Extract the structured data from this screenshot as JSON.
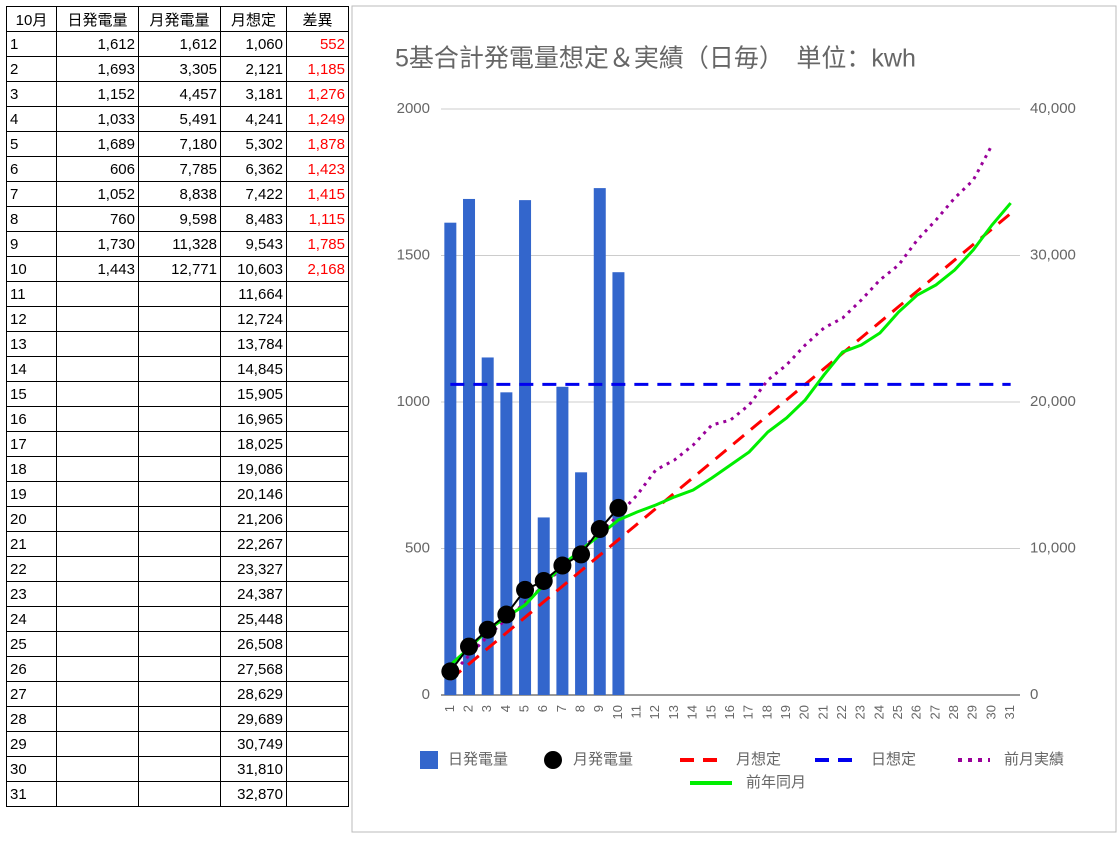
{
  "table": {
    "header": [
      "10月",
      "日発電量",
      "月発電量",
      "月想定",
      "差異"
    ],
    "rows": [
      [
        "1",
        "1,612",
        "1,612",
        "1,060",
        "552"
      ],
      [
        "2",
        "1,693",
        "3,305",
        "2,121",
        "1,185"
      ],
      [
        "3",
        "1,152",
        "4,457",
        "3,181",
        "1,276"
      ],
      [
        "4",
        "1,033",
        "5,491",
        "4,241",
        "1,249"
      ],
      [
        "5",
        "1,689",
        "7,180",
        "5,302",
        "1,878"
      ],
      [
        "6",
        "606",
        "7,785",
        "6,362",
        "1,423"
      ],
      [
        "7",
        "1,052",
        "8,838",
        "7,422",
        "1,415"
      ],
      [
        "8",
        "760",
        "9,598",
        "8,483",
        "1,115"
      ],
      [
        "9",
        "1,730",
        "11,328",
        "9,543",
        "1,785"
      ],
      [
        "10",
        "1,443",
        "12,771",
        "10,603",
        "2,168"
      ],
      [
        "11",
        null,
        null,
        "11,664",
        null
      ],
      [
        "12",
        null,
        null,
        "12,724",
        null
      ],
      [
        "13",
        null,
        null,
        "13,784",
        null
      ],
      [
        "14",
        null,
        null,
        "14,845",
        null
      ],
      [
        "15",
        null,
        null,
        "15,905",
        null
      ],
      [
        "16",
        null,
        null,
        "16,965",
        null
      ],
      [
        "17",
        null,
        null,
        "18,025",
        null
      ],
      [
        "18",
        null,
        null,
        "19,086",
        null
      ],
      [
        "19",
        null,
        null,
        "20,146",
        null
      ],
      [
        "20",
        null,
        null,
        "21,206",
        null
      ],
      [
        "21",
        null,
        null,
        "22,267",
        null
      ],
      [
        "22",
        null,
        null,
        "23,327",
        null
      ],
      [
        "23",
        null,
        null,
        "24,387",
        null
      ],
      [
        "24",
        null,
        null,
        "25,448",
        null
      ],
      [
        "25",
        null,
        null,
        "26,508",
        null
      ],
      [
        "26",
        null,
        null,
        "27,568",
        null
      ],
      [
        "27",
        null,
        null,
        "28,629",
        null
      ],
      [
        "28",
        null,
        null,
        "29,689",
        null
      ],
      [
        "29",
        null,
        null,
        "30,749",
        null
      ],
      [
        "30",
        null,
        null,
        "31,810",
        null
      ],
      [
        "31",
        null,
        null,
        "32,870",
        null
      ]
    ]
  },
  "chart_data": {
    "type": "bar",
    "title": "5基合計発電量想定＆実績（日毎）　単位：kwh",
    "categories": [
      "1",
      "2",
      "3",
      "4",
      "5",
      "6",
      "7",
      "8",
      "9",
      "10",
      "11",
      "12",
      "13",
      "14",
      "15",
      "16",
      "17",
      "18",
      "19",
      "20",
      "21",
      "22",
      "23",
      "24",
      "25",
      "26",
      "27",
      "28",
      "29",
      "30",
      "31"
    ],
    "ylim": [
      0,
      2000
    ],
    "yticks": [
      0,
      500,
      1000,
      1500,
      2000
    ],
    "y2lim": [
      0,
      40000
    ],
    "y2ticks": [
      0,
      {
        "value": 10000,
        "label": "10,000"
      },
      {
        "value": 20000,
        "label": "20,000"
      },
      {
        "value": 30000,
        "label": "30,000"
      },
      {
        "value": 40000,
        "label": "40,000"
      }
    ],
    "grid": true,
    "legend": "bottom",
    "series": [
      {
        "name": "日発電量",
        "type": "bar",
        "color": "#3366cc",
        "values": [
          1612,
          1693,
          1152,
          1033,
          1689,
          606,
          1052,
          760,
          1730,
          1443,
          null,
          null,
          null,
          null,
          null,
          null,
          null,
          null,
          null,
          null,
          null,
          null,
          null,
          null,
          null,
          null,
          null,
          null,
          null,
          null,
          null
        ]
      },
      {
        "name": "月発電量",
        "type": "line",
        "marker": "circle",
        "color": "#000000",
        "axis": "y2",
        "values": [
          1612,
          3305,
          4457,
          5491,
          7180,
          7785,
          8838,
          9598,
          11328,
          12771,
          null,
          null,
          null,
          null,
          null,
          null,
          null,
          null,
          null,
          null,
          null,
          null,
          null,
          null,
          null,
          null,
          null,
          null,
          null,
          null,
          null
        ]
      },
      {
        "name": "月想定",
        "type": "line",
        "dash": "dashed",
        "color": "#ff0000",
        "axis": "y2",
        "values": [
          1060,
          2121,
          3181,
          4241,
          5302,
          6362,
          7422,
          8483,
          9543,
          10603,
          11664,
          12724,
          13784,
          14845,
          15905,
          16965,
          18025,
          19086,
          20146,
          21206,
          22267,
          23327,
          24387,
          25448,
          26508,
          27568,
          28629,
          29689,
          30749,
          31810,
          32870
        ]
      },
      {
        "name": "日想定",
        "type": "line",
        "dash": "dashed",
        "color": "#0000ee",
        "values": [
          1060,
          1060,
          1060,
          1060,
          1060,
          1060,
          1060,
          1060,
          1060,
          1060,
          1060,
          1060,
          1060,
          1060,
          1060,
          1060,
          1060,
          1060,
          1060,
          1060,
          1060,
          1060,
          1060,
          1060,
          1060,
          1060,
          1060,
          1060,
          1060,
          1060,
          1060
        ]
      },
      {
        "name": "前月実績",
        "type": "line",
        "dash": "dotted",
        "color": "#990099",
        "axis": "y2",
        "values": [
          1300,
          2700,
          4000,
          5200,
          6300,
          7500,
          8700,
          10000,
          11000,
          12300,
          13650,
          15360,
          16040,
          17060,
          18430,
          18770,
          19800,
          21500,
          22530,
          23890,
          25050,
          25730,
          26960,
          28330,
          29350,
          31060,
          32420,
          33920,
          35150,
          37540,
          null
        ]
      },
      {
        "name": "前年同月",
        "type": "line",
        "color": "#00ee00",
        "axis": "y2",
        "values": [
          2050,
          3200,
          4440,
          5320,
          6140,
          7510,
          8870,
          9900,
          10920,
          11950,
          12490,
          12970,
          13520,
          13990,
          14810,
          15700,
          16590,
          17950,
          18910,
          20140,
          21840,
          23410,
          23890,
          24710,
          26140,
          27300,
          27990,
          29010,
          30380,
          32080,
          33580
        ]
      }
    ]
  }
}
